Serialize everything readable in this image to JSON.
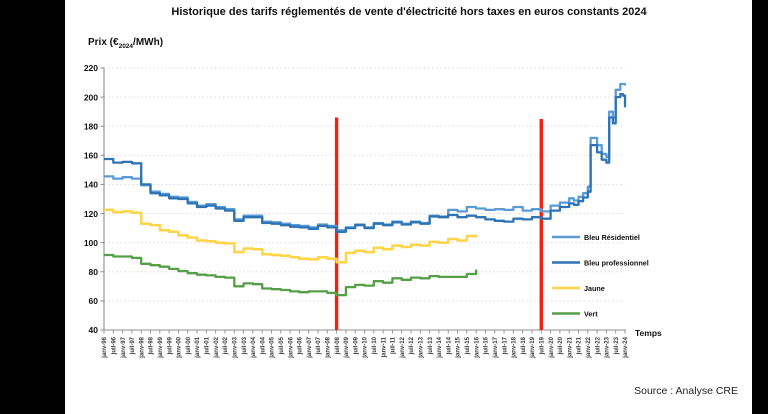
{
  "page": {
    "title": "Historique des tarifs réglementés de vente d'électricité hors taxes en euros constants 2024",
    "source": "Source : Analyse CRE"
  },
  "axis": {
    "y_title_prefix": "Prix (€",
    "y_title_sub": "2024",
    "y_title_suffix": "/MWh)",
    "x_title": "Temps"
  },
  "chart_data": {
    "type": "line",
    "title": "Historique des tarifs réglementés de vente d'électricité hors taxes en euros constants 2024",
    "xlabel": "Temps",
    "ylabel": "Prix (€2024/MWh)",
    "ylim": [
      40,
      220
    ],
    "ytick_step": 20,
    "grid": "horizontal-dotted",
    "legend_position": "inside-right",
    "x_tick_labels": [
      "janv-96",
      "juil-96",
      "janv-97",
      "juil-97",
      "janv-98",
      "juil-98",
      "janv-99",
      "juil-99",
      "janv-00",
      "juil-00",
      "janv-01",
      "juil-01",
      "janv-02",
      "juil-02",
      "janv-03",
      "juil-03",
      "janv-04",
      "juil-04",
      "janv-05",
      "juil-05",
      "janv-06",
      "juil-06",
      "janv-07",
      "juil-07",
      "janv-08",
      "juil-08",
      "janv-09",
      "juil-09",
      "janv-10",
      "juil-10",
      "janv-11",
      "juil-11",
      "janv-12",
      "juil-12",
      "janv-13",
      "juil-13",
      "janv-14",
      "juil-14",
      "janv-15",
      "juil-15",
      "janv-16",
      "juil-16",
      "janv-17",
      "juil-17",
      "janv-18",
      "juil-18",
      "janv-19",
      "juil-19",
      "janv-20",
      "juil-20",
      "janv-21",
      "juil-21",
      "janv-22",
      "juil-22",
      "janv-23",
      "juil-23",
      "janv-24"
    ],
    "red_vlines": [
      {
        "x_index": 25,
        "label": "juil-08",
        "value_range": [
          40,
          186
        ],
        "color": "#ee2213"
      },
      {
        "x_index": 47,
        "label": "juil-19",
        "value_range": [
          40,
          185
        ],
        "color": "#ee2213"
      }
    ],
    "series": [
      {
        "name": "Bleu Résidentiel",
        "color": "#5b9bd5",
        "width": 2.3,
        "points": [
          [
            0,
            145.5
          ],
          [
            1,
            144
          ],
          [
            2,
            145
          ],
          [
            3,
            144
          ],
          [
            4,
            139.5
          ],
          [
            5,
            135
          ],
          [
            6,
            133.5
          ],
          [
            7,
            131.5
          ],
          [
            8,
            131
          ],
          [
            9,
            128
          ],
          [
            10,
            125.5
          ],
          [
            11,
            126.5
          ],
          [
            12,
            124.5
          ],
          [
            13,
            123
          ],
          [
            14,
            116
          ],
          [
            15,
            118.5
          ],
          [
            16,
            118.5
          ],
          [
            17,
            114.5
          ],
          [
            18,
            114
          ],
          [
            19,
            113
          ],
          [
            20,
            112
          ],
          [
            21,
            111.5
          ],
          [
            22,
            110.5
          ],
          [
            23,
            112.5
          ],
          [
            24,
            111.5
          ],
          [
            25,
            108.5
          ],
          [
            26,
            110.5
          ],
          [
            27,
            112.5
          ],
          [
            28,
            110.5
          ],
          [
            29,
            113.5
          ],
          [
            30,
            112.5
          ],
          [
            31,
            114.5
          ],
          [
            32,
            113
          ],
          [
            33,
            114.5
          ],
          [
            34,
            113.5
          ],
          [
            35,
            118.5
          ],
          [
            36,
            118
          ],
          [
            37,
            122.5
          ],
          [
            38,
            121.5
          ],
          [
            39,
            124.5
          ],
          [
            40,
            123.5
          ],
          [
            41,
            122.5
          ],
          [
            42,
            123
          ],
          [
            43,
            122.5
          ],
          [
            44,
            124.5
          ],
          [
            45,
            122
          ],
          [
            46,
            123
          ],
          [
            47,
            121.5
          ],
          [
            48,
            125.5
          ],
          [
            49,
            127.5
          ],
          [
            50,
            130.5
          ],
          [
            50.5,
            129
          ],
          [
            51,
            131.5
          ],
          [
            51.5,
            134
          ],
          [
            52,
            138.5
          ],
          [
            52.3,
            172
          ],
          [
            53,
            167
          ],
          [
            53.5,
            161
          ],
          [
            54,
            159
          ],
          [
            54.3,
            190
          ],
          [
            54.7,
            186
          ],
          [
            55,
            205
          ],
          [
            55.5,
            209
          ],
          [
            56,
            208
          ]
        ]
      },
      {
        "name": "Bleu professionnel",
        "color": "#2e74b5",
        "width": 2.3,
        "points": [
          [
            0,
            157.5
          ],
          [
            1,
            155
          ],
          [
            2,
            155.5
          ],
          [
            3,
            154.5
          ],
          [
            4,
            140
          ],
          [
            5,
            134
          ],
          [
            6,
            132.5
          ],
          [
            7,
            130.5
          ],
          [
            8,
            130
          ],
          [
            9,
            127
          ],
          [
            10,
            124.5
          ],
          [
            11,
            125.5
          ],
          [
            12,
            123.5
          ],
          [
            13,
            122
          ],
          [
            14,
            115
          ],
          [
            15,
            117.5
          ],
          [
            16,
            117.5
          ],
          [
            17,
            113.5
          ],
          [
            18,
            113
          ],
          [
            19,
            112
          ],
          [
            20,
            111
          ],
          [
            21,
            110.5
          ],
          [
            22,
            109.5
          ],
          [
            23,
            111.5
          ],
          [
            24,
            110.5
          ],
          [
            25,
            107.5
          ],
          [
            26,
            110
          ],
          [
            27,
            112
          ],
          [
            28,
            110
          ],
          [
            29,
            113
          ],
          [
            30,
            112
          ],
          [
            31,
            114
          ],
          [
            32,
            112.5
          ],
          [
            33,
            114
          ],
          [
            34,
            113
          ],
          [
            35,
            118
          ],
          [
            36,
            117.5
          ],
          [
            37,
            119
          ],
          [
            38,
            117.5
          ],
          [
            39,
            118.5
          ],
          [
            40,
            117.5
          ],
          [
            41,
            116
          ],
          [
            42,
            115
          ],
          [
            43,
            114.5
          ],
          [
            44,
            116.5
          ],
          [
            45,
            116
          ],
          [
            46,
            117.5
          ],
          [
            47,
            116.5
          ],
          [
            48,
            122
          ],
          [
            49,
            124.5
          ],
          [
            50,
            127
          ],
          [
            50.5,
            126
          ],
          [
            51,
            128.5
          ],
          [
            51.5,
            131
          ],
          [
            52,
            135
          ],
          [
            52.3,
            167
          ],
          [
            53,
            162
          ],
          [
            53.5,
            157
          ],
          [
            54,
            155
          ],
          [
            54.3,
            186
          ],
          [
            54.7,
            182
          ],
          [
            55,
            200
          ],
          [
            55.5,
            202
          ],
          [
            55.8,
            201
          ],
          [
            56,
            193
          ]
        ]
      },
      {
        "name": "Jaune",
        "color": "#ffd447",
        "width": 2.5,
        "points": [
          [
            0,
            122.5
          ],
          [
            1,
            121
          ],
          [
            2,
            121.5
          ],
          [
            3,
            120.5
          ],
          [
            4,
            113
          ],
          [
            5,
            112
          ],
          [
            6,
            108.5
          ],
          [
            7,
            107.5
          ],
          [
            8,
            105
          ],
          [
            9,
            103.5
          ],
          [
            10,
            101.5
          ],
          [
            11,
            101
          ],
          [
            12,
            100
          ],
          [
            13,
            99.5
          ],
          [
            14,
            93.5
          ],
          [
            15,
            96
          ],
          [
            16,
            95.5
          ],
          [
            17,
            92
          ],
          [
            18,
            91.5
          ],
          [
            19,
            91
          ],
          [
            20,
            90
          ],
          [
            21,
            89
          ],
          [
            22,
            88.5
          ],
          [
            23,
            90
          ],
          [
            24,
            89
          ],
          [
            25,
            86.5
          ],
          [
            26,
            93
          ],
          [
            27,
            94.5
          ],
          [
            28,
            93.5
          ],
          [
            29,
            96.5
          ],
          [
            30,
            95.5
          ],
          [
            31,
            98
          ],
          [
            32,
            97
          ],
          [
            33,
            98.5
          ],
          [
            34,
            98
          ],
          [
            35,
            100.5
          ],
          [
            36,
            100
          ],
          [
            37,
            102.5
          ],
          [
            38,
            101.5
          ],
          [
            39,
            104.5
          ],
          [
            40,
            105.5
          ]
        ]
      },
      {
        "name": "Vert",
        "color": "#55a047",
        "width": 2.3,
        "points": [
          [
            0,
            91.5
          ],
          [
            1,
            90.5
          ],
          [
            2,
            90.5
          ],
          [
            3,
            89.5
          ],
          [
            4,
            85.5
          ],
          [
            5,
            84.5
          ],
          [
            6,
            83.5
          ],
          [
            7,
            82
          ],
          [
            8,
            80.5
          ],
          [
            9,
            79
          ],
          [
            10,
            78
          ],
          [
            11,
            77.5
          ],
          [
            12,
            76.5
          ],
          [
            13,
            76
          ],
          [
            14,
            70
          ],
          [
            15,
            72
          ],
          [
            16,
            71.5
          ],
          [
            17,
            68.5
          ],
          [
            18,
            68
          ],
          [
            19,
            67.5
          ],
          [
            20,
            66.5
          ],
          [
            21,
            66
          ],
          [
            22,
            66.5
          ],
          [
            23,
            66.5
          ],
          [
            24,
            65.5
          ],
          [
            25,
            64
          ],
          [
            26,
            69.5
          ],
          [
            27,
            71
          ],
          [
            28,
            70.5
          ],
          [
            29,
            73.5
          ],
          [
            30,
            72.5
          ],
          [
            31,
            75.5
          ],
          [
            32,
            74.5
          ],
          [
            33,
            76
          ],
          [
            34,
            75.5
          ],
          [
            35,
            77
          ],
          [
            36,
            76.5
          ],
          [
            37,
            76.5
          ],
          [
            38,
            76.5
          ],
          [
            39,
            78.5
          ],
          [
            40,
            81.5
          ]
        ]
      }
    ],
    "legend": [
      "Bleu Résidentiel",
      "Bleu professionnel",
      "Jaune",
      "Vert"
    ]
  },
  "style_colors": {
    "grid": "#d8d8d8",
    "axis": "#8c8c8c",
    "tick_text": "#3a3a3a",
    "label_text": "#111111"
  }
}
